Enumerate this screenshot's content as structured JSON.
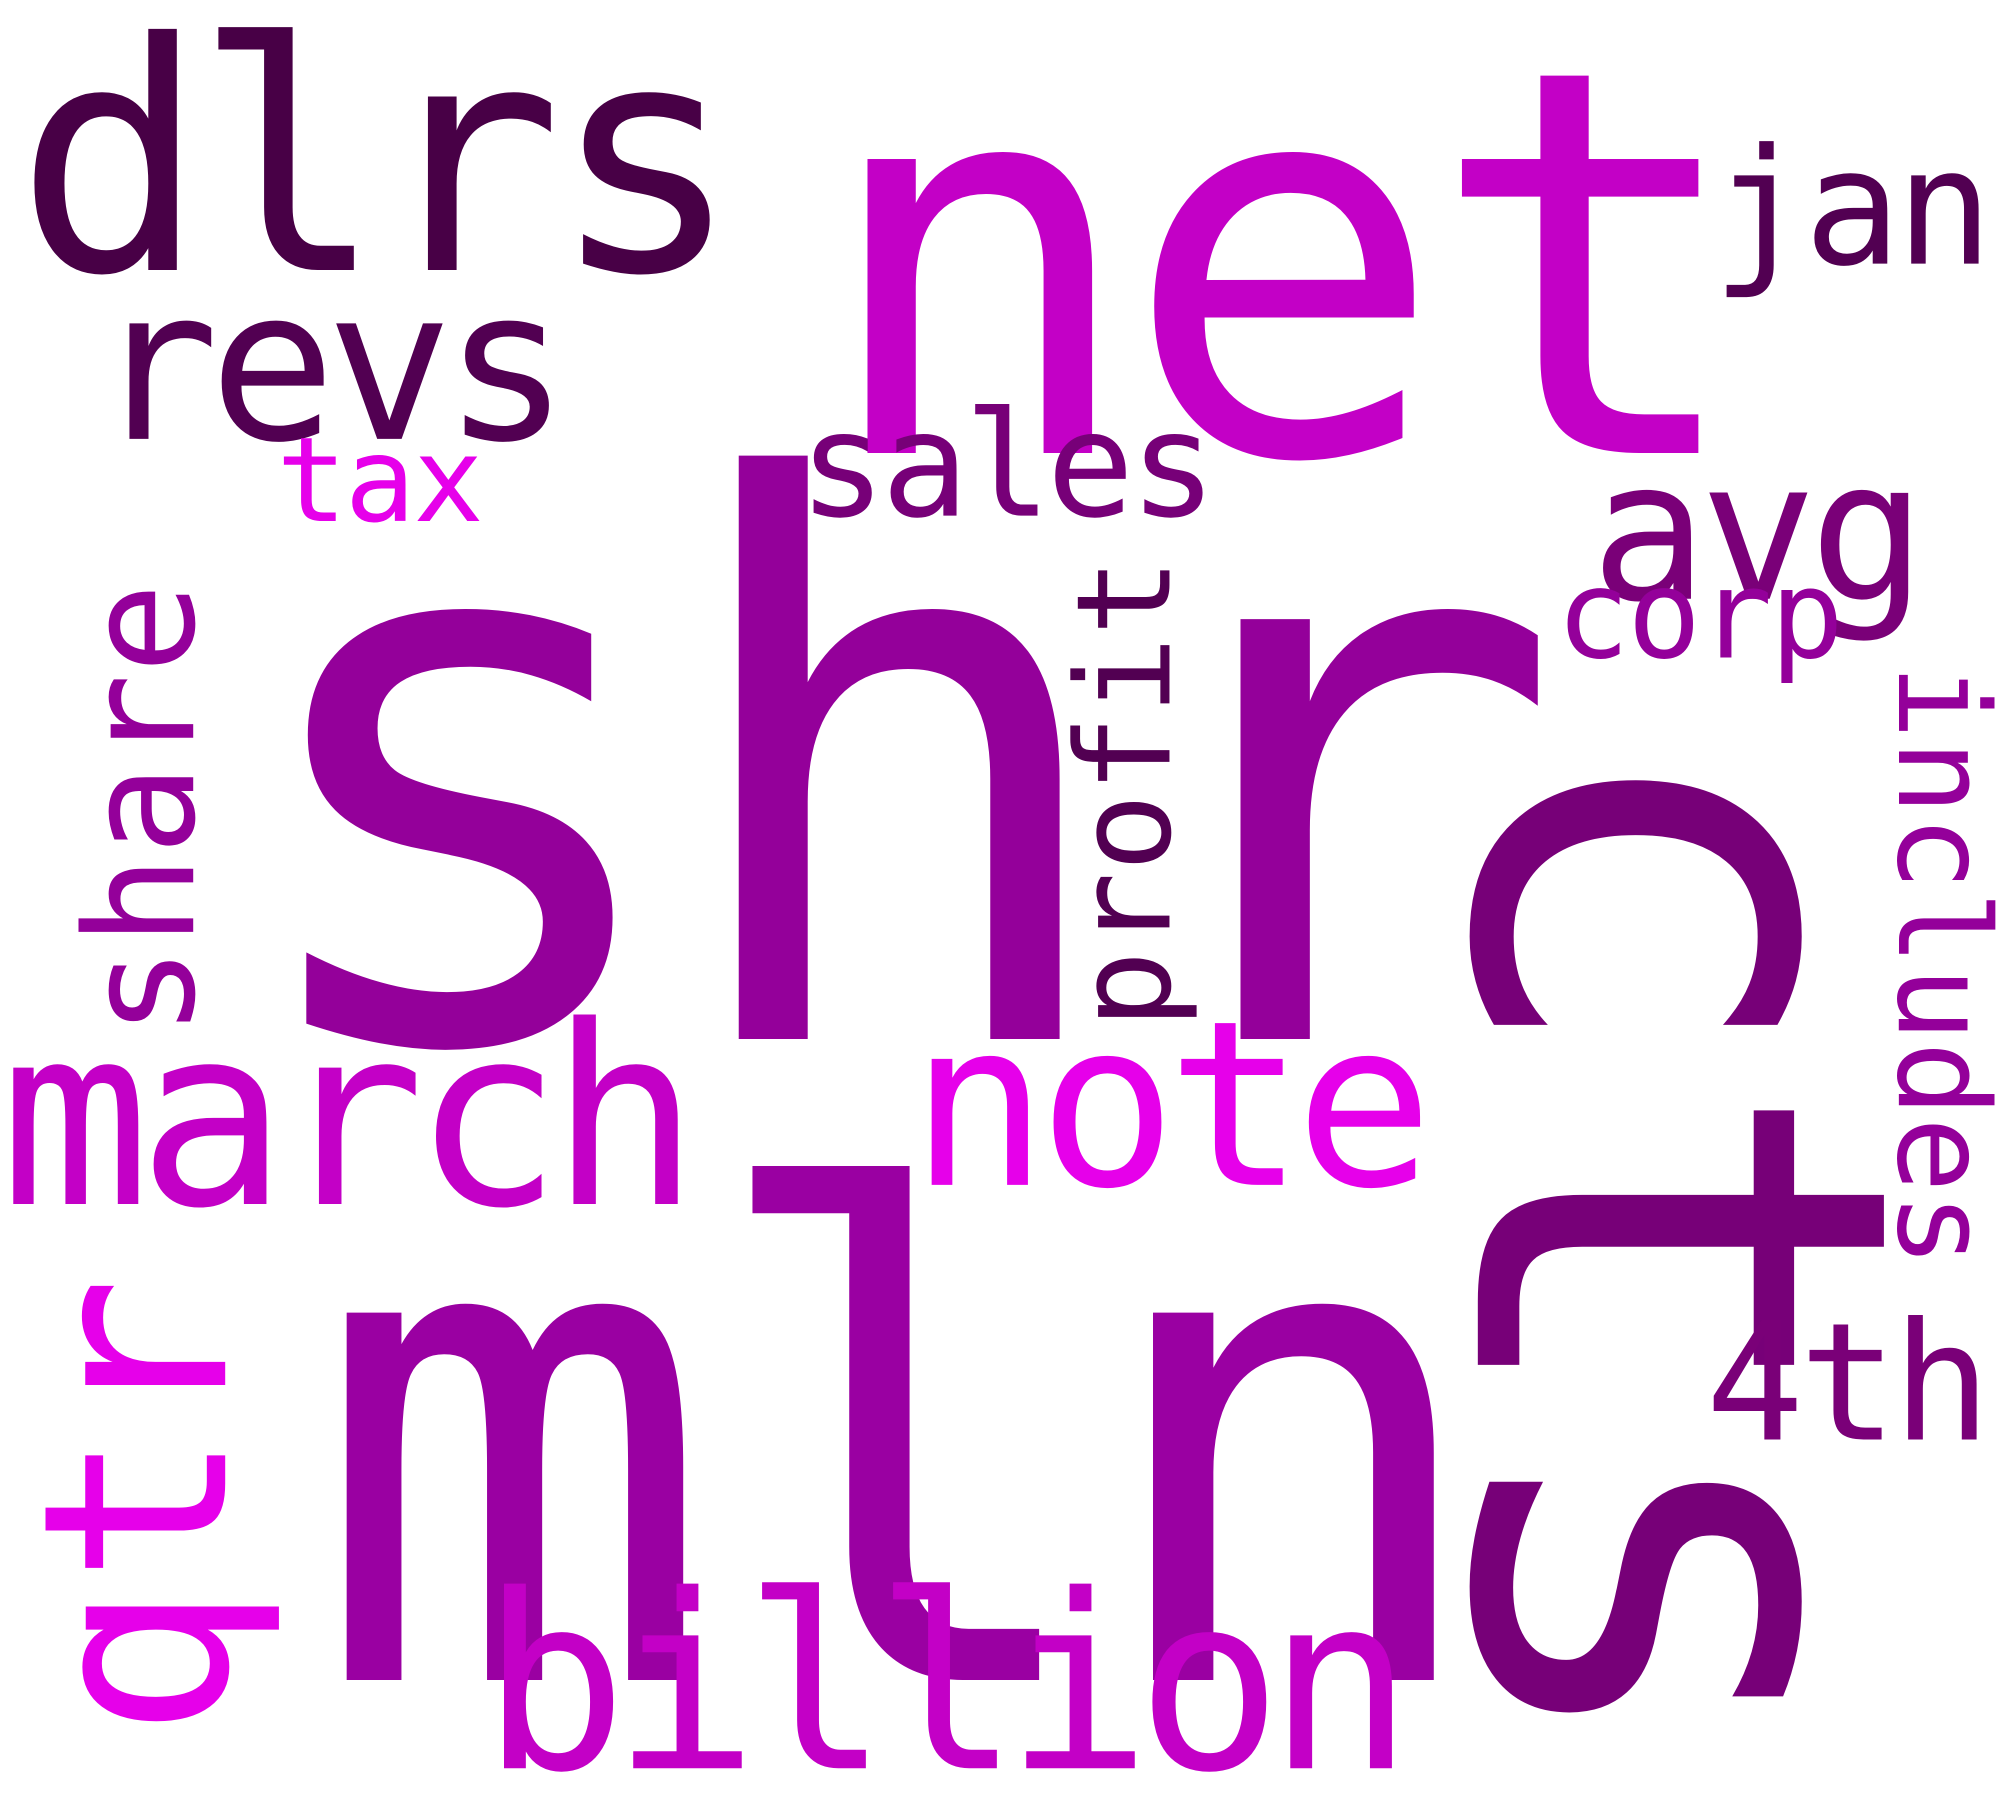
{
  "words": [
    {
      "text": "shr",
      "color": "#94009a"
    },
    {
      "text": "cts",
      "color": "#770078"
    },
    {
      "text": "mln",
      "color": "#9a00a2"
    },
    {
      "text": "net",
      "color": "#c300c6"
    },
    {
      "text": "dlrs",
      "color": "#480046"
    },
    {
      "text": "revs",
      "color": "#520052"
    },
    {
      "text": "march",
      "color": "#c300c6"
    },
    {
      "text": "note",
      "color": "#e600ea"
    },
    {
      "text": "billion",
      "color": "#c300c6"
    },
    {
      "text": "qtr",
      "color": "#e600ea"
    },
    {
      "text": "share",
      "color": "#94009a"
    },
    {
      "text": "avg",
      "color": "#7a0078"
    },
    {
      "text": "sales",
      "color": "#770078"
    },
    {
      "text": "profit",
      "color": "#520052"
    },
    {
      "text": "includes",
      "color": "#94009a"
    },
    {
      "text": "corp",
      "color": "#94009a"
    },
    {
      "text": "4th",
      "color": "#7a0078"
    },
    {
      "text": "jan",
      "color": "#520052"
    },
    {
      "text": "tax",
      "color": "#e600ea"
    }
  ]
}
